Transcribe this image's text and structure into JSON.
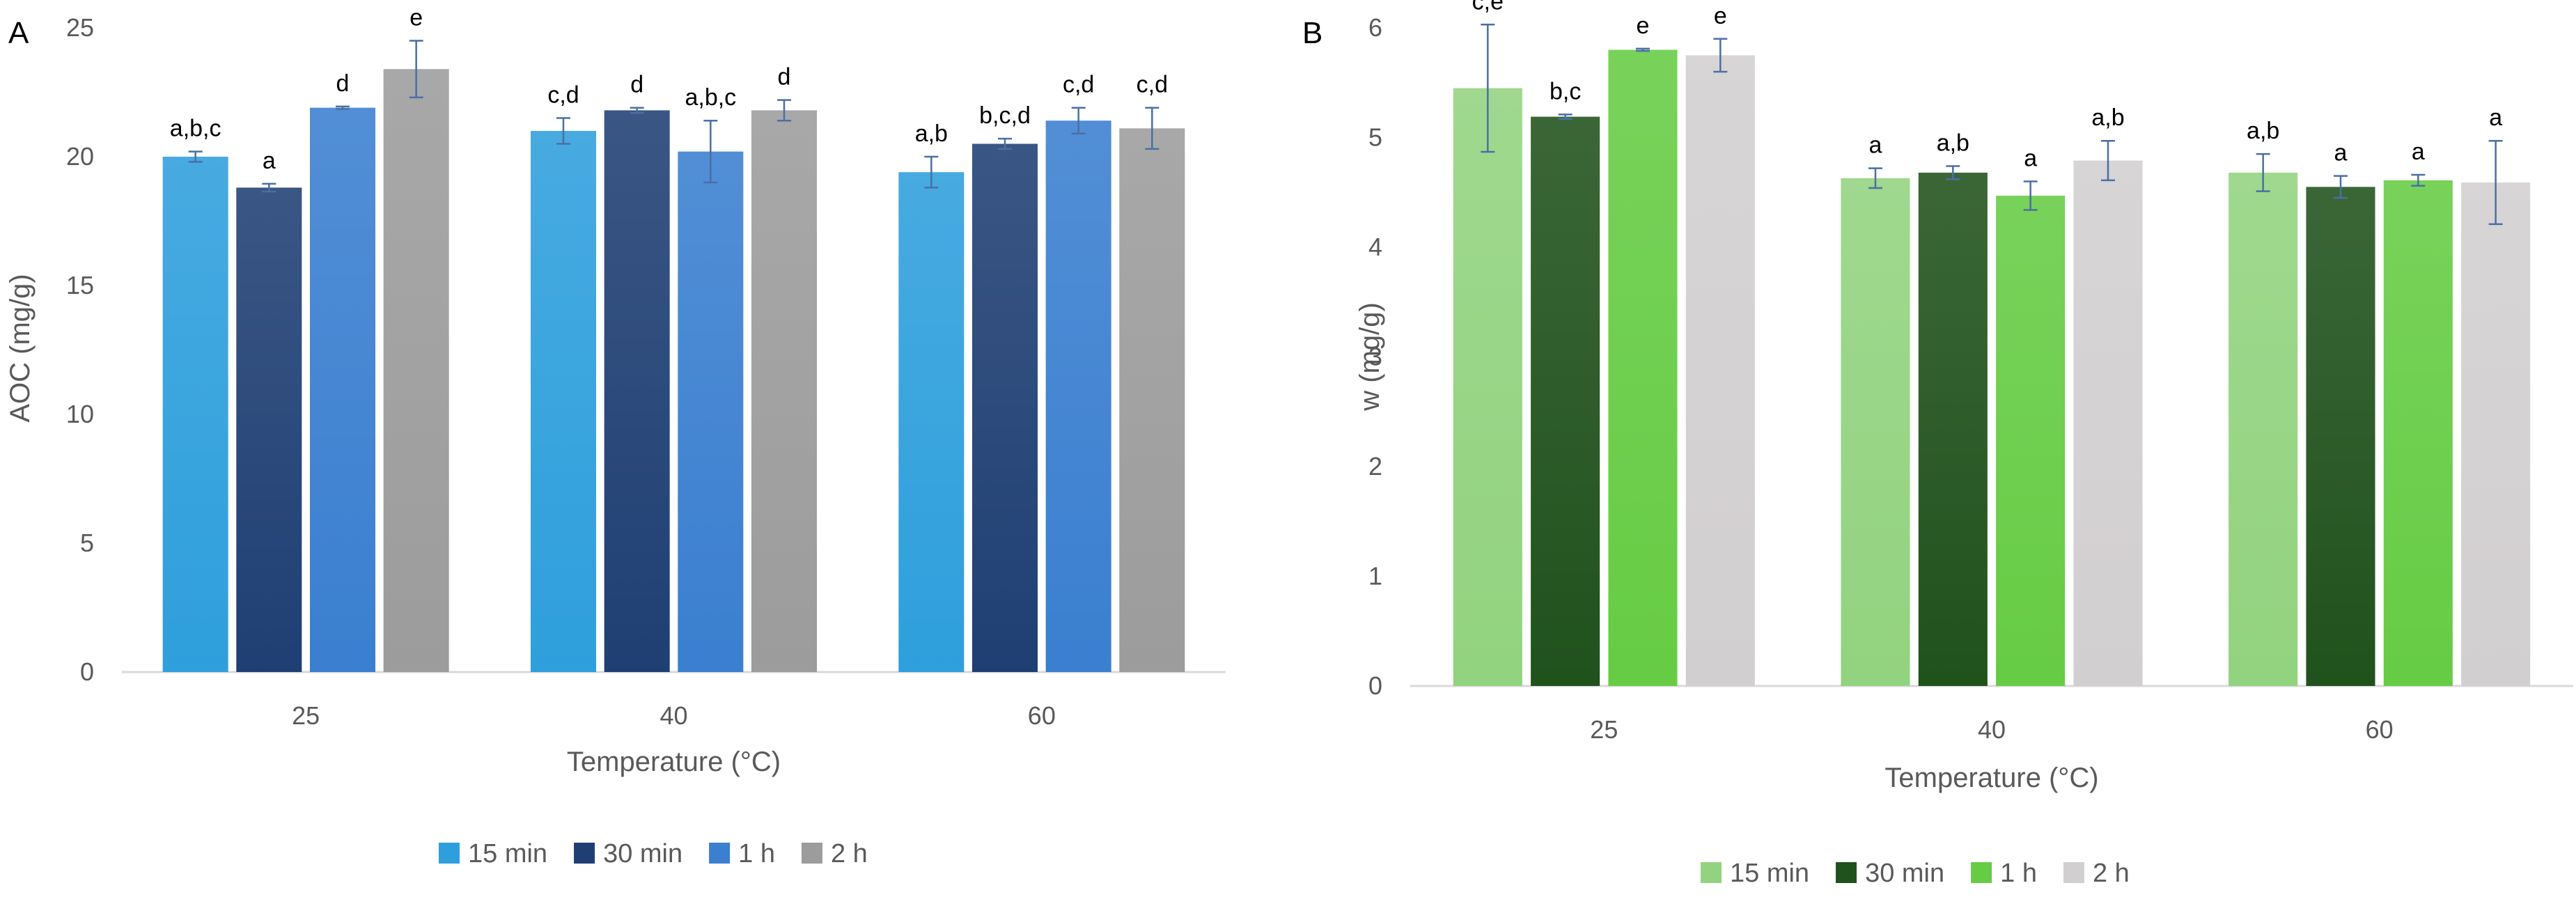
{
  "chart_data": [
    {
      "type": "bar",
      "panel_label": "A",
      "categories": [
        "25",
        "40",
        "60"
      ],
      "xlabel": "Temperature (°C)",
      "ylabel": "AOC (mg/g)",
      "ylim": [
        0,
        25
      ],
      "yticks": [
        0,
        5,
        10,
        15,
        20,
        25
      ],
      "grid": false,
      "legend_position": "bottom",
      "series": [
        {
          "name": "15 min",
          "color": "#2e9fdc",
          "values": [
            20.0,
            21.0,
            19.4
          ],
          "errors": [
            0.2,
            0.5,
            0.6
          ],
          "labels": [
            "a,b,c",
            "c,d",
            "a,b"
          ]
        },
        {
          "name": "30 min",
          "color": "#1f3f73",
          "values": [
            18.8,
            21.8,
            20.5
          ],
          "errors": [
            0.15,
            0.1,
            0.2
          ],
          "labels": [
            "a",
            "d",
            "b,c,d"
          ]
        },
        {
          "name": "1 h",
          "color": "#3a7fd0",
          "values": [
            21.9,
            20.2,
            21.4
          ],
          "errors": [
            0.05,
            1.2,
            0.5
          ],
          "labels": [
            "d",
            "a,b,c",
            "c,d"
          ]
        },
        {
          "name": "2 h",
          "color": "#9c9c9c",
          "values": [
            23.4,
            21.8,
            21.1
          ],
          "errors": [
            1.1,
            0.4,
            0.8
          ],
          "labels": [
            "e",
            "d",
            "c,d"
          ]
        }
      ]
    },
    {
      "type": "bar",
      "panel_label": "B",
      "categories": [
        "25",
        "40",
        "60"
      ],
      "xlabel": "Temperature (°C)",
      "ylabel": "w (mg/g)",
      "ylim": [
        0,
        6
      ],
      "yticks": [
        0,
        1,
        2,
        3,
        4,
        5,
        6
      ],
      "grid": false,
      "legend_position": "bottom",
      "series": [
        {
          "name": "15 min",
          "color": "#92d37f",
          "values": [
            5.45,
            4.63,
            4.68
          ],
          "errors": [
            0.58,
            0.09,
            0.17
          ],
          "labels": [
            "c,e",
            "a",
            "a,b"
          ]
        },
        {
          "name": "30 min",
          "color": "#20521c",
          "values": [
            5.19,
            4.68,
            4.55
          ],
          "errors": [
            0.02,
            0.06,
            0.1
          ],
          "labels": [
            "b,c",
            "a,b",
            "a"
          ]
        },
        {
          "name": "1 h",
          "color": "#66cc44",
          "values": [
            5.8,
            4.47,
            4.61
          ],
          "errors": [
            0.01,
            0.13,
            0.05
          ],
          "labels": [
            "e",
            "a",
            "a"
          ]
        },
        {
          "name": "2 h",
          "color": "#d2cfd0",
          "values": [
            5.75,
            4.79,
            4.59
          ],
          "errors": [
            0.15,
            0.18,
            0.38
          ],
          "labels": [
            "e",
            "a,b",
            "a"
          ]
        }
      ]
    }
  ]
}
